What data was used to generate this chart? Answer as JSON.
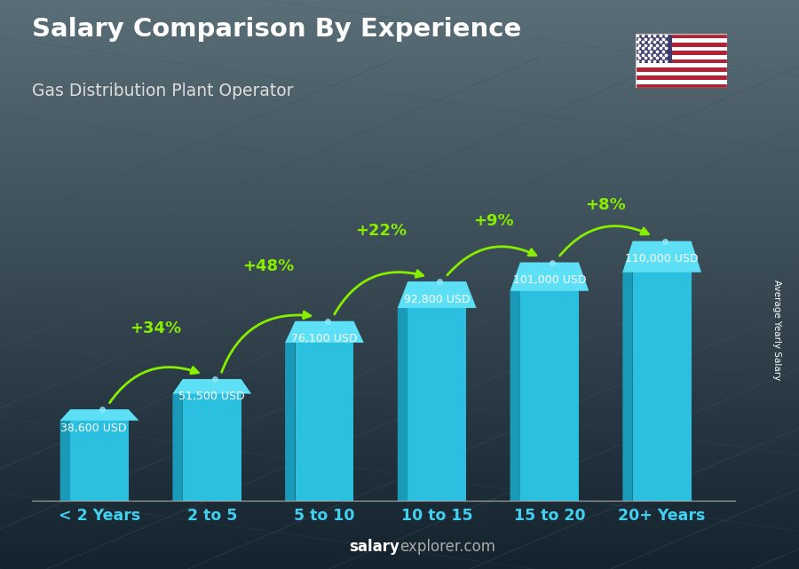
{
  "title": "Salary Comparison By Experience",
  "subtitle": "Gas Distribution Plant Operator",
  "categories": [
    "< 2 Years",
    "2 to 5",
    "5 to 10",
    "10 to 15",
    "15 to 20",
    "20+ Years"
  ],
  "values": [
    38600,
    51500,
    76100,
    92800,
    101000,
    110000
  ],
  "value_labels": [
    "38,600 USD",
    "51,500 USD",
    "76,100 USD",
    "92,800 USD",
    "101,000 USD",
    "110,000 USD"
  ],
  "pct_changes": [
    "+34%",
    "+48%",
    "+22%",
    "+9%",
    "+8%"
  ],
  "bar_color": "#2bbfe0",
  "bar_left_color": "#1a9ab8",
  "bar_top_color": "#5de0f5",
  "bg_top_color": "#5a6e7e",
  "bg_bottom_color": "#1a2530",
  "text_color": "#ffffff",
  "green_color": "#88ee00",
  "cat_color": "#40d0f0",
  "ylabel": "Average Yearly Salary",
  "footer_bold": "salary",
  "footer_normal": "explorer.com",
  "ylim": [
    0,
    135000
  ],
  "bar_width": 0.52,
  "arrow_rad": -0.4
}
